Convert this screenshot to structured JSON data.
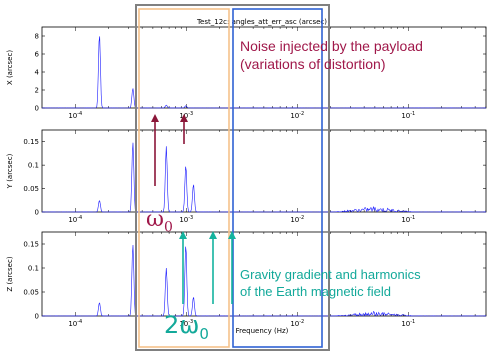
{
  "figure_title": "Test_12c: angles_att_err_asc (arcsec)",
  "xlabel": "Frequency (Hz)",
  "annotations": {
    "payload_line1": "Noise injected by the payload",
    "payload_line2": "(variations of distortion)",
    "omega0": "ω",
    "omega0_sub": "0",
    "two_omega0": "2ω",
    "two_omega0_sub": "0",
    "gravity_line1": "Gravity gradient and harmonics",
    "gravity_line2": "of the Earth magnetic field"
  },
  "colors": {
    "signal": "#1a1aff",
    "orange_box": "#f5c18a",
    "blue_box": "#2f62d4",
    "grey_box": "#808080",
    "red_arrow": "#8a1638",
    "teal_arrow": "#14b39e"
  },
  "chart_data": [
    {
      "type": "line",
      "name_label": "X (arcsec)",
      "ylabel": "X (arcsec)",
      "xscale": "log",
      "xlim": [
        0.0001,
        0.5
      ],
      "ylim": [
        0,
        9
      ],
      "yticks": [
        0,
        2,
        4,
        6,
        8
      ],
      "ytick_labels": [
        "0",
        "2",
        "4",
        "6",
        "8"
      ],
      "xtick_labels": [
        "10^-4",
        "10^-3",
        "10^-2",
        "10^-1"
      ],
      "peaks": [
        {
          "x": 0.000165,
          "y": 8.3
        },
        {
          "x": 0.00033,
          "y": 2.2
        },
        {
          "x": 0.00066,
          "y": 0.3
        },
        {
          "x": 0.00099,
          "y": 0.25
        }
      ]
    },
    {
      "type": "line",
      "ylabel": "Y (arcsec)",
      "xscale": "log",
      "xlim": [
        0.0001,
        0.5
      ],
      "ylim": [
        0,
        0.175
      ],
      "yticks": [
        0,
        0.05,
        0.1,
        0.15
      ],
      "ytick_labels": [
        "0",
        "0.05",
        "0.1",
        "0.15"
      ],
      "xtick_labels": [
        "10^-4",
        "10^-3",
        "10^-2",
        "10^-1"
      ],
      "peaks": [
        {
          "x": 0.000165,
          "y": 0.025
        },
        {
          "x": 0.00033,
          "y": 0.15
        },
        {
          "x": 0.00066,
          "y": 0.14
        },
        {
          "x": 0.00099,
          "y": 0.1
        },
        {
          "x": 0.00116,
          "y": 0.06
        }
      ],
      "noise_band": {
        "x_from": 0.022,
        "x_to": 0.11,
        "y_max": 0.012
      }
    },
    {
      "type": "line",
      "ylabel": "Z (arcsec)",
      "xscale": "log",
      "xlim": [
        0.0001,
        0.5
      ],
      "ylim": [
        0,
        0.175
      ],
      "yticks": [
        0,
        0.05,
        0.1,
        0.15
      ],
      "ytick_labels": [
        "0",
        "0.05",
        "0.1",
        "0.15"
      ],
      "xtick_labels": [
        "10^-4",
        "10^-3",
        "10^-2",
        "10^-1"
      ],
      "peaks": [
        {
          "x": 0.000165,
          "y": 0.028
        },
        {
          "x": 0.00033,
          "y": 0.15
        },
        {
          "x": 0.00066,
          "y": 0.1
        },
        {
          "x": 0.00099,
          "y": 0.15
        },
        {
          "x": 0.00116,
          "y": 0.04
        }
      ],
      "noise_band": {
        "x_from": 0.022,
        "x_to": 0.11,
        "y_max": 0.01
      }
    }
  ]
}
